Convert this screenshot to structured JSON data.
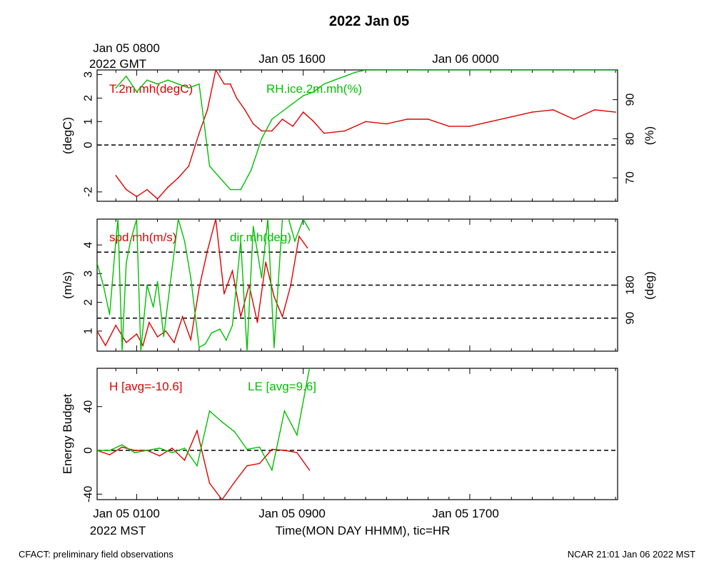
{
  "title": "2022 Jan 05",
  "top_axis": {
    "date_line": "2022 GMT",
    "ticks": [
      "Jan 05 0800",
      "Jan 05 1600",
      "Jan 06 0000"
    ]
  },
  "bottom_axis": {
    "date_line": "2022 MST",
    "ticks": [
      "Jan 05 0100",
      "Jan 05 0900",
      "Jan 05 1700"
    ],
    "xlabel": "Time(MON DAY HHMM), tic=HR"
  },
  "footer": {
    "left": "CFACT: preliminary field observations",
    "right": "NCAR 21:01 Jan 06 2022 MST"
  },
  "colors": {
    "red": "#e00000",
    "green": "#00c000",
    "axis": "#000000"
  },
  "chart_data": [
    {
      "type": "line",
      "panel": "top",
      "x_unit": "hours since Jan 05 0000 MST",
      "xlim": [
        -0.9,
        24.1
      ],
      "ylabel_left": "(degC)",
      "ylabel_right": "(%)",
      "ylim_left": [
        -2.4,
        3.2
      ],
      "ylim_right": [
        64,
        97.6
      ],
      "yticks_left": [
        -2,
        0,
        1,
        2,
        3
      ],
      "yticks_right": [
        70,
        80,
        90
      ],
      "reference_lines_left": [
        0
      ],
      "grid": false,
      "series": [
        {
          "name": "T.2m.mh(degC)",
          "axis": "left",
          "color": "red",
          "x": [
            0,
            0.5,
            1,
            1.5,
            2,
            2.5,
            3,
            3.5,
            4,
            4.4,
            4.8,
            5.2,
            5.5,
            5.8,
            6.2,
            6.6,
            7,
            7.5,
            8,
            8.5,
            9,
            9.5,
            10,
            11,
            12,
            13,
            14,
            15,
            16,
            17,
            18,
            19,
            20,
            21,
            22,
            23,
            24
          ],
          "values": [
            -1.3,
            -1.9,
            -2.2,
            -1.9,
            -2.3,
            -1.8,
            -1.4,
            -0.9,
            0.5,
            1.5,
            3.2,
            2.6,
            2.6,
            2.0,
            1.5,
            0.9,
            0.6,
            0.6,
            1.1,
            0.8,
            1.4,
            1.0,
            0.5,
            0.6,
            1.0,
            0.9,
            1.1,
            1.1,
            0.8,
            0.8,
            1.0,
            1.2,
            1.4,
            1.5,
            1.1,
            1.5,
            1.4
          ]
        },
        {
          "name": "RH.ice.2m.mh(%)",
          "axis": "right",
          "color": "green",
          "x": [
            0,
            0.5,
            1,
            1.5,
            2,
            2.5,
            3,
            3.5,
            4,
            4.5,
            5,
            5.5,
            6,
            6.5,
            7,
            7.5,
            8,
            8.5,
            9,
            9.5,
            10,
            10.5,
            11,
            11.5,
            12,
            13,
            14,
            15,
            16,
            17,
            18,
            19,
            20,
            21,
            22,
            23,
            24
          ],
          "values": [
            93,
            96,
            92,
            95,
            94,
            95,
            94,
            93,
            94,
            73,
            70,
            67,
            67,
            72,
            80,
            85,
            87,
            89,
            91,
            92,
            94,
            95,
            96,
            97,
            97.6,
            97.6,
            97.6,
            97.6,
            97.6,
            97.6,
            97.6,
            97.6,
            97.6,
            97.6,
            97.6,
            97.6,
            97.6
          ]
        }
      ]
    },
    {
      "type": "line",
      "panel": "middle",
      "x_unit": "hours since Jan 05 0000 MST",
      "xlim": [
        -0.9,
        24.1
      ],
      "ylabel_left": "(m/s)",
      "ylabel_right": "(deg)",
      "ylim_left": [
        0.3,
        4.9
      ],
      "ylim_right": [
        0,
        360
      ],
      "yticks_left": [
        1,
        2,
        3,
        4
      ],
      "yticks_right": [
        90,
        180
      ],
      "reference_lines_right": [
        90,
        180,
        270
      ],
      "grid": false,
      "series": [
        {
          "name": "spd.mh(m/s)",
          "axis": "left",
          "color": "red",
          "x": [
            -0.9,
            -0.5,
            0,
            0.5,
            1,
            1.3,
            1.6,
            2,
            2.4,
            2.8,
            3.2,
            3.6,
            4,
            4.4,
            4.8,
            5.2,
            5.6,
            6,
            6.4,
            6.8,
            7.2,
            7.6,
            8,
            8.4,
            8.8,
            9.2
          ],
          "values": [
            1.0,
            0.5,
            1.2,
            0.6,
            0.9,
            0.5,
            1.3,
            0.8,
            1.0,
            0.6,
            1.5,
            0.7,
            2.5,
            3.8,
            4.9,
            2.3,
            3.1,
            1.5,
            2.6,
            1.3,
            3.4,
            2.2,
            1.5,
            2.6,
            4.3,
            3.9
          ]
        },
        {
          "name": "dir.mh(deg)",
          "axis": "right",
          "color": "green",
          "x": [
            -0.9,
            -0.6,
            -0.3,
            0,
            0.1,
            0.3,
            0.5,
            0.7,
            1,
            1.2,
            1.5,
            1.8,
            2,
            2.3,
            2.6,
            3,
            3.3,
            3.6,
            4,
            4.3,
            4.6,
            5,
            5.3,
            5.6,
            6,
            6.3,
            6.6,
            7,
            7.3,
            7.6,
            8,
            8.3,
            8.6,
            9,
            9.3
          ],
          "values": [
            240,
            180,
            100,
            300,
            360,
            0,
            240,
            300,
            360,
            0,
            180,
            120,
            190,
            40,
            180,
            360,
            300,
            200,
            10,
            20,
            50,
            60,
            30,
            70,
            300,
            0,
            340,
            200,
            360,
            10,
            360,
            360,
            300,
            360,
            330
          ]
        }
      ]
    },
    {
      "type": "line",
      "panel": "bottom",
      "x_unit": "hours since Jan 05 0000 MST",
      "xlim": [
        -0.9,
        24.1
      ],
      "ylabel_left": "Energy Budget",
      "ylim_left": [
        -45,
        75
      ],
      "yticks_left": [
        -40,
        0,
        40
      ],
      "reference_lines_left": [
        0
      ],
      "grid": false,
      "series": [
        {
          "name": "H [avg=-10.6]",
          "axis": "left",
          "color": "red",
          "x": [
            -0.9,
            -0.3,
            0.3,
            0.9,
            1.5,
            2.1,
            2.7,
            3.3,
            3.9,
            4.5,
            5.1,
            5.7,
            6.3,
            6.9,
            7.5,
            8.1,
            8.7,
            9.3
          ],
          "values": [
            0,
            -4,
            3,
            0,
            0,
            -5,
            2,
            -9,
            18,
            -30,
            -45,
            -29,
            -14,
            -12,
            1,
            0,
            -2,
            -18
          ]
        },
        {
          "name": "LE [avg=9.6]",
          "axis": "left",
          "color": "green",
          "x": [
            -0.9,
            -0.3,
            0.3,
            0.9,
            1.5,
            2.1,
            2.7,
            3.3,
            3.9,
            4.5,
            5.1,
            5.7,
            6.3,
            6.9,
            7.5,
            8.1,
            8.7,
            9.3
          ],
          "values": [
            0,
            0,
            5,
            -2,
            0,
            2,
            -2,
            2,
            -14,
            36,
            26,
            17,
            1,
            3,
            -18,
            36,
            14,
            75
          ]
        }
      ]
    }
  ]
}
